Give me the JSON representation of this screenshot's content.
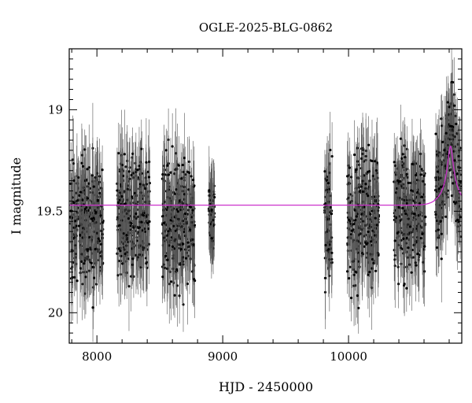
{
  "chart_data": {
    "type": "scatter",
    "title": "OGLE-2025-BLG-0862",
    "xlabel": "HJD - 2450000",
    "ylabel": "I magnitude",
    "xlim": [
      7780,
      10900
    ],
    "ylim": [
      20.15,
      18.7
    ],
    "y_inverted": true,
    "x_ticks": [
      8000,
      9000,
      10000
    ],
    "y_ticks": [
      19,
      19.5,
      20
    ],
    "x_tick_labels": [
      "8000",
      "9000",
      "10000"
    ],
    "y_tick_labels": [
      "19",
      "19.5",
      "20"
    ],
    "grid": false,
    "legend": "none",
    "colors": {
      "points": "#000000",
      "model": "#cc33cc"
    },
    "series": [
      {
        "kind": "observations",
        "with_error_bars": true,
        "typical_error": 0.15,
        "seasons": [
          {
            "x_start": 7790,
            "x_end": 8050,
            "y_center": 19.55,
            "y_spread": 0.3
          },
          {
            "x_start": 8160,
            "x_end": 8420,
            "y_center": 19.52,
            "y_spread": 0.3
          },
          {
            "x_start": 8520,
            "x_end": 8780,
            "y_center": 19.55,
            "y_spread": 0.3
          },
          {
            "x_start": 8890,
            "x_end": 8935,
            "y_center": 19.52,
            "y_spread": 0.18
          },
          {
            "x_start": 9810,
            "x_end": 9870,
            "y_center": 19.52,
            "y_spread": 0.3
          },
          {
            "x_start": 9990,
            "x_end": 10240,
            "y_center": 19.53,
            "y_spread": 0.3
          },
          {
            "x_start": 10360,
            "x_end": 10610,
            "y_center": 19.52,
            "y_spread": 0.3
          },
          {
            "x_start": 10690,
            "x_end": 10895,
            "y_center": 19.45,
            "y_spread": 0.28
          }
        ]
      },
      {
        "kind": "model",
        "baseline": 19.47,
        "peak_x": 10810,
        "peak_mag": 19.18,
        "width": 55
      }
    ]
  }
}
